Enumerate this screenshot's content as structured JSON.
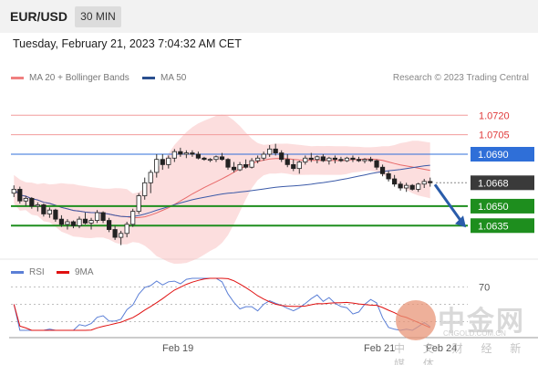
{
  "header": {
    "pair": "EUR/USD",
    "timeframe": "30 MIN",
    "datetime": "Tuesday, February 21, 2023 7:04:32 AM CET"
  },
  "legend": {
    "ma20": {
      "label": "MA 20 + Bollinger Bands",
      "color": "#f08080"
    },
    "ma50": {
      "label": "MA 50",
      "color": "#2a4f8f"
    },
    "credit": "Research © 2023 Trading Central"
  },
  "rsi_legend": {
    "rsi": {
      "label": "RSI",
      "color": "#5b7fd6"
    },
    "ma9": {
      "label": "9MA",
      "color": "#e01010"
    }
  },
  "watermark": {
    "title": "中金网",
    "sub": "CNGOLD.COM.CN",
    "sub2": "中 文 财 经 新 媒 体"
  },
  "chart_data": {
    "type": "candlestick",
    "title": "EUR/USD",
    "timeframe": "30 MIN",
    "x_ticks": [
      "Feb 19",
      "Feb 21",
      "Feb 24"
    ],
    "ylim": [
      1.0612,
      1.0742
    ],
    "levels": [
      {
        "value": 1.072,
        "label": "1.0720",
        "style": "resistance-minor",
        "color": "#f29b9b"
      },
      {
        "value": 1.0705,
        "label": "1.0705",
        "style": "resistance-minor",
        "color": "#f29b9b"
      },
      {
        "value": 1.069,
        "label": "1.0690",
        "style": "pivot",
        "color": "#2f6fd8"
      },
      {
        "value": 1.0668,
        "label": "1.0668",
        "style": "last-price",
        "color": "#3a3a3a"
      },
      {
        "value": 1.065,
        "label": "1.0650",
        "style": "support",
        "color": "#1e8e1e"
      },
      {
        "value": 1.0635,
        "label": "1.0635",
        "style": "support",
        "color": "#1e8e1e"
      }
    ],
    "last_price": 1.0668,
    "forecast_arrow": {
      "from": 1.0668,
      "to": 1.0635,
      "color": "#2a5caa"
    },
    "candles": [
      [
        1.066,
        1.0666,
        1.0657,
        1.0663
      ],
      [
        1.0663,
        1.0665,
        1.0652,
        1.0654
      ],
      [
        1.0654,
        1.0658,
        1.065,
        1.0656
      ],
      [
        1.0656,
        1.0657,
        1.0648,
        1.065
      ],
      [
        1.065,
        1.0653,
        1.0646,
        1.0651
      ],
      [
        1.0651,
        1.0652,
        1.0642,
        1.0644
      ],
      [
        1.0644,
        1.0649,
        1.0641,
        1.0647
      ],
      [
        1.0647,
        1.0648,
        1.0638,
        1.064
      ],
      [
        1.064,
        1.0643,
        1.0634,
        1.0636
      ],
      [
        1.0636,
        1.064,
        1.0632,
        1.0638
      ],
      [
        1.0638,
        1.0639,
        1.0633,
        1.0635
      ],
      [
        1.0635,
        1.0642,
        1.0633,
        1.064
      ],
      [
        1.064,
        1.0645,
        1.0636,
        1.0637
      ],
      [
        1.0637,
        1.0641,
        1.0632,
        1.0639
      ],
      [
        1.0639,
        1.0647,
        1.0637,
        1.0645
      ],
      [
        1.0645,
        1.0646,
        1.0637,
        1.0639
      ],
      [
        1.0639,
        1.0641,
        1.063,
        1.0632
      ],
      [
        1.0632,
        1.0635,
        1.0624,
        1.0626
      ],
      [
        1.0626,
        1.0631,
        1.062,
        1.0629
      ],
      [
        1.0629,
        1.0638,
        1.0626,
        1.0636
      ],
      [
        1.0636,
        1.0648,
        1.0634,
        1.0646
      ],
      [
        1.0646,
        1.066,
        1.0644,
        1.0658
      ],
      [
        1.0658,
        1.0672,
        1.0655,
        1.0668
      ],
      [
        1.0668,
        1.0678,
        1.066,
        1.0676
      ],
      [
        1.0676,
        1.069,
        1.0672,
        1.0686
      ],
      [
        1.0686,
        1.069,
        1.0678,
        1.0682
      ],
      [
        1.0682,
        1.0689,
        1.0679,
        1.0687
      ],
      [
        1.0687,
        1.0694,
        1.0684,
        1.0692
      ],
      [
        1.0692,
        1.0695,
        1.0688,
        1.069
      ],
      [
        1.069,
        1.0693,
        1.0687,
        1.0691
      ],
      [
        1.0691,
        1.0693,
        1.0688,
        1.069
      ],
      [
        1.069,
        1.0692,
        1.0686,
        1.0687
      ],
      [
        1.0687,
        1.0688,
        1.0685,
        1.0686
      ],
      [
        1.0686,
        1.0687,
        1.0684,
        1.0686
      ],
      [
        1.0686,
        1.0689,
        1.0684,
        1.0688
      ],
      [
        1.0688,
        1.0691,
        1.0685,
        1.0686
      ],
      [
        1.0686,
        1.0687,
        1.0678,
        1.068
      ],
      [
        1.068,
        1.0684,
        1.0676,
        1.0678
      ],
      [
        1.0678,
        1.0684,
        1.0677,
        1.0682
      ],
      [
        1.0682,
        1.0686,
        1.0679,
        1.068
      ],
      [
        1.068,
        1.0687,
        1.0679,
        1.0685
      ],
      [
        1.0685,
        1.0689,
        1.0683,
        1.0687
      ],
      [
        1.0687,
        1.0692,
        1.0685,
        1.069
      ],
      [
        1.069,
        1.0697,
        1.0688,
        1.0694
      ],
      [
        1.0694,
        1.0698,
        1.0689,
        1.0691
      ],
      [
        1.0691,
        1.0693,
        1.0684,
        1.0686
      ],
      [
        1.0686,
        1.069,
        1.068,
        1.0682
      ],
      [
        1.0682,
        1.0686,
        1.0677,
        1.0679
      ],
      [
        1.0679,
        1.0685,
        1.0675,
        1.0684
      ],
      [
        1.0684,
        1.0689,
        1.0682,
        1.0687
      ],
      [
        1.0687,
        1.0691,
        1.0684,
        1.0686
      ],
      [
        1.0686,
        1.0689,
        1.0683,
        1.0688
      ],
      [
        1.0688,
        1.069,
        1.0684,
        1.0685
      ],
      [
        1.0685,
        1.0688,
        1.0682,
        1.0687
      ],
      [
        1.0687,
        1.0689,
        1.0683,
        1.0686
      ],
      [
        1.0686,
        1.0688,
        1.0684,
        1.0685
      ],
      [
        1.0685,
        1.0688,
        1.0684,
        1.0687
      ],
      [
        1.0687,
        1.0689,
        1.0684,
        1.0686
      ],
      [
        1.0686,
        1.0688,
        1.0684,
        1.0685
      ],
      [
        1.0685,
        1.0687,
        1.0683,
        1.0686
      ],
      [
        1.0686,
        1.0688,
        1.0684,
        1.0685
      ],
      [
        1.0685,
        1.0686,
        1.0678,
        1.068
      ],
      [
        1.068,
        1.0682,
        1.0673,
        1.0675
      ],
      [
        1.0675,
        1.0677,
        1.0669,
        1.0671
      ],
      [
        1.0671,
        1.0674,
        1.0665,
        1.0667
      ],
      [
        1.0667,
        1.0669,
        1.0662,
        1.0664
      ],
      [
        1.0664,
        1.0668,
        1.0661,
        1.0666
      ],
      [
        1.0666,
        1.0667,
        1.0662,
        1.0663
      ],
      [
        1.0663,
        1.0668,
        1.0661,
        1.0667
      ],
      [
        1.0667,
        1.0671,
        1.0664,
        1.0669
      ],
      [
        1.0669,
        1.0672,
        1.0665,
        1.0668
      ]
    ]
  }
}
